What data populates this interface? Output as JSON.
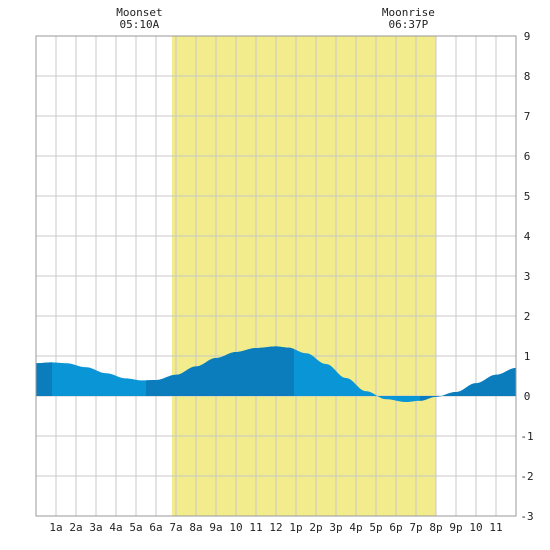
{
  "chart_data": {
    "type": "area",
    "title": "",
    "xlabel": "",
    "ylabel": "",
    "x_unit": "hour of day",
    "xlim": [
      0,
      24
    ],
    "ylim": [
      -3,
      9
    ],
    "grid": true,
    "x_tick_labels": [
      {
        "x": 1,
        "label": "1a"
      },
      {
        "x": 2,
        "label": "2a"
      },
      {
        "x": 3,
        "label": "3a"
      },
      {
        "x": 4,
        "label": "4a"
      },
      {
        "x": 5,
        "label": "5a"
      },
      {
        "x": 6,
        "label": "6a"
      },
      {
        "x": 7,
        "label": "7a"
      },
      {
        "x": 8,
        "label": "8a"
      },
      {
        "x": 9,
        "label": "9a"
      },
      {
        "x": 10,
        "label": "10"
      },
      {
        "x": 11,
        "label": "11"
      },
      {
        "x": 12,
        "label": "12"
      },
      {
        "x": 13,
        "label": "1p"
      },
      {
        "x": 14,
        "label": "2p"
      },
      {
        "x": 15,
        "label": "3p"
      },
      {
        "x": 16,
        "label": "4p"
      },
      {
        "x": 17,
        "label": "5p"
      },
      {
        "x": 18,
        "label": "6p"
      },
      {
        "x": 19,
        "label": "7p"
      },
      {
        "x": 20,
        "label": "8p"
      },
      {
        "x": 21,
        "label": "9p"
      },
      {
        "x": 22,
        "label": "10"
      },
      {
        "x": 23,
        "label": "11"
      }
    ],
    "y_ticks": [
      -3,
      -2,
      -1,
      0,
      1,
      2,
      3,
      4,
      5,
      6,
      7,
      8,
      9
    ],
    "series": [
      {
        "x": [
          0,
          0.8,
          1.5,
          2.5,
          3.5,
          4.5,
          5.3,
          6.0,
          7.0,
          8.0,
          9.0,
          10.0,
          11.0,
          12.0,
          12.6,
          13.5,
          14.5,
          15.5,
          16.5,
          17.5,
          18.5,
          19.2,
          20.0,
          21.0,
          22.0,
          23.0,
          24.0
        ],
        "y": [
          0.82,
          0.84,
          0.82,
          0.72,
          0.57,
          0.44,
          0.39,
          0.4,
          0.53,
          0.74,
          0.95,
          1.1,
          1.2,
          1.24,
          1.21,
          1.07,
          0.8,
          0.45,
          0.12,
          -0.08,
          -0.15,
          -0.12,
          -0.02,
          0.1,
          0.32,
          0.53,
          0.7
        ]
      }
    ],
    "daylight_band": {
      "start": 6.8,
      "end": 20.0,
      "color": "#f2ec8c"
    },
    "shade_bands": [
      [
        0,
        0.8
      ],
      [
        5.5,
        12.9
      ],
      [
        19.2,
        24
      ]
    ],
    "colors": {
      "grid": "#c8c8c8",
      "tide_fill": "#0a96d6",
      "tide_fill_dark": "#0b7dbd",
      "daylight": "#f2ec8c",
      "background": "#ffffff"
    },
    "annotations": [
      {
        "x": 5.17,
        "title": "Moonset",
        "time": "05:10A"
      },
      {
        "x": 18.62,
        "title": "Moonrise",
        "time": "06:37P"
      }
    ]
  }
}
